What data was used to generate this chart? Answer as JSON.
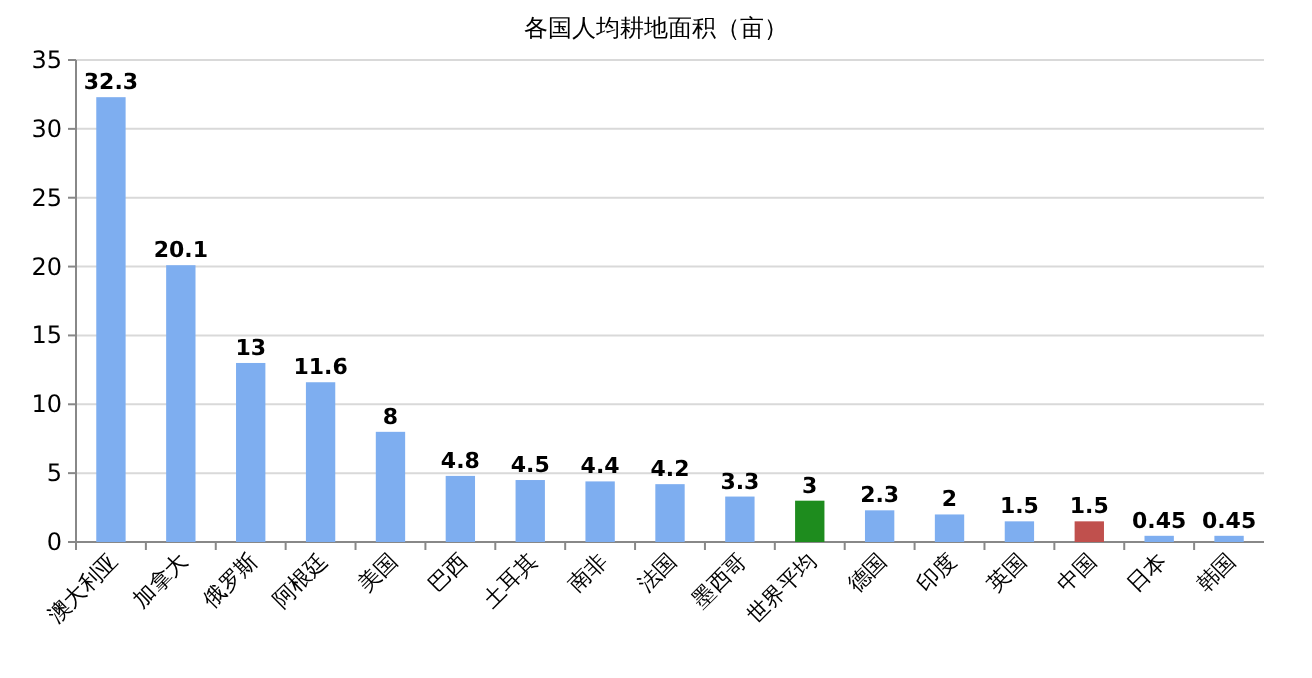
{
  "chart_data": {
    "type": "bar",
    "title": "各国人均耕地面积（亩）",
    "categories": [
      "澳大利亚",
      "加拿大",
      "俄罗斯",
      "阿根廷",
      "美国",
      "巴西",
      "土耳其",
      "南非",
      "法国",
      "墨西哥",
      "世界平均",
      "德国",
      "印度",
      "英国",
      "中国",
      "日本",
      "韩国"
    ],
    "values": [
      32.3,
      20.1,
      13,
      11.6,
      8,
      4.8,
      4.5,
      4.4,
      4.2,
      3.3,
      3,
      2.3,
      2,
      1.5,
      1.5,
      0.45,
      0.45
    ],
    "colors": [
      "#7eaef0",
      "#7eaef0",
      "#7eaef0",
      "#7eaef0",
      "#7eaef0",
      "#7eaef0",
      "#7eaef0",
      "#7eaef0",
      "#7eaef0",
      "#7eaef0",
      "#1e8c1e",
      "#7eaef0",
      "#7eaef0",
      "#7eaef0",
      "#c0504d",
      "#7eaef0",
      "#7eaef0"
    ],
    "ylim": [
      0,
      35
    ],
    "yticks": [
      0,
      5,
      10,
      15,
      20,
      25,
      30,
      35
    ],
    "grid": "y",
    "data_labels": true
  }
}
